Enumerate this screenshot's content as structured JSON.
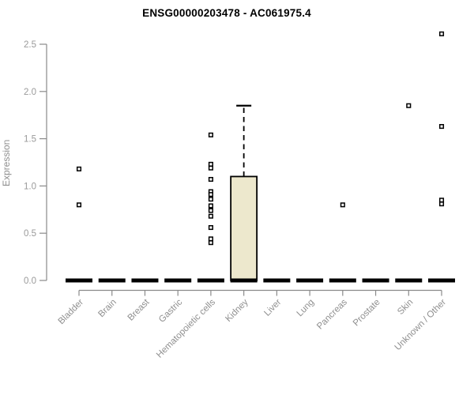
{
  "chart_data": {
    "type": "boxplot",
    "title": "ENSG00000203478 - AC061975.4",
    "ylabel": "Expression",
    "xlabel": "",
    "ylim": [
      0,
      2.5
    ],
    "grid": false,
    "legend": false,
    "yticks": [
      {
        "v": 0.0,
        "label": "0.0"
      },
      {
        "v": 0.5,
        "label": "0.5"
      },
      {
        "v": 1.0,
        "label": "1.0"
      },
      {
        "v": 1.5,
        "label": "1.5"
      },
      {
        "v": 2.0,
        "label": "2.0"
      },
      {
        "v": 2.5,
        "label": "2.5"
      }
    ],
    "categories": [
      "Bladder",
      "Brain",
      "Breast",
      "Gastric",
      "Hematopoietic cells",
      "Kidney",
      "Liver",
      "Lung",
      "Pancreas",
      "Prostate",
      "Skin",
      "Unknown / Other"
    ],
    "boxes": [
      {
        "category": "Bladder",
        "q1": 0,
        "median": 0,
        "q3": 0,
        "whisker_low": 0,
        "whisker_high": 0,
        "outliers": [
          1.18,
          0.8
        ]
      },
      {
        "category": "Brain",
        "q1": 0,
        "median": 0,
        "q3": 0,
        "whisker_low": 0,
        "whisker_high": 0,
        "outliers": []
      },
      {
        "category": "Breast",
        "q1": 0,
        "median": 0,
        "q3": 0,
        "whisker_low": 0,
        "whisker_high": 0,
        "outliers": []
      },
      {
        "category": "Gastric",
        "q1": 0,
        "median": 0,
        "q3": 0,
        "whisker_low": 0,
        "whisker_high": 0,
        "outliers": []
      },
      {
        "category": "Hematopoietic cells",
        "q1": 0,
        "median": 0,
        "q3": 0,
        "whisker_low": 0,
        "whisker_high": 0,
        "outliers": [
          1.54,
          1.23,
          1.19,
          1.07,
          0.94,
          0.91,
          0.86,
          0.79,
          0.74,
          0.68,
          0.56,
          0.44,
          0.4
        ]
      },
      {
        "category": "Kidney",
        "q1": 0,
        "median": 0,
        "q3": 1.1,
        "whisker_low": 0,
        "whisker_high": 1.85,
        "outliers": []
      },
      {
        "category": "Liver",
        "q1": 0,
        "median": 0,
        "q3": 0,
        "whisker_low": 0,
        "whisker_high": 0,
        "outliers": []
      },
      {
        "category": "Lung",
        "q1": 0,
        "median": 0,
        "q3": 0,
        "whisker_low": 0,
        "whisker_high": 0,
        "outliers": []
      },
      {
        "category": "Pancreas",
        "q1": 0,
        "median": 0,
        "q3": 0,
        "whisker_low": 0,
        "whisker_high": 0,
        "outliers": [
          0.8
        ]
      },
      {
        "category": "Prostate",
        "q1": 0,
        "median": 0,
        "q3": 0,
        "whisker_low": 0,
        "whisker_high": 0,
        "outliers": []
      },
      {
        "category": "Skin",
        "q1": 0,
        "median": 0,
        "q3": 0,
        "whisker_low": 0,
        "whisker_high": 0,
        "outliers": [
          1.85
        ]
      },
      {
        "category": "Unknown / Other",
        "q1": 0,
        "median": 0,
        "q3": 0,
        "whisker_low": 0,
        "whisker_high": 0,
        "outliers": [
          2.61,
          1.63,
          0.85,
          0.81
        ]
      }
    ],
    "colors": {
      "box_fill": "#EDE8CD",
      "box_stroke": "#000000",
      "median": "#000000",
      "outlier_stroke": "#000000",
      "outlier_fill": "#ffffff",
      "axis_line": "#8a8a8a",
      "tick_text": "#9a9a9a",
      "category_text": "#8f8f8f",
      "title_text": "#000000"
    }
  }
}
